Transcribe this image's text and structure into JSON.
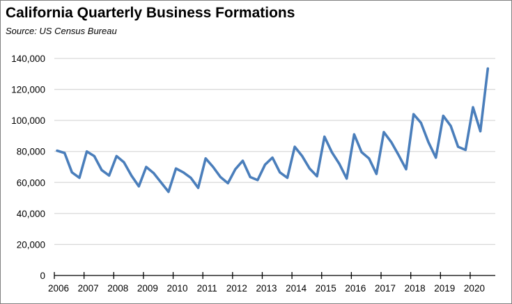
{
  "chart_data": {
    "type": "line",
    "title": "California Quarterly Business Formations",
    "subtitle": "Source:  US Census Bureau",
    "xlabel": "",
    "ylabel": "",
    "ylim": [
      0,
      140000
    ],
    "yticks": [
      "0",
      "20,000",
      "40,000",
      "60,000",
      "80,000",
      "100,000",
      "120,000",
      "140,000"
    ],
    "ytick_values": [
      0,
      20000,
      40000,
      60000,
      80000,
      100000,
      120000,
      140000
    ],
    "xticks": [
      "2006",
      "2007",
      "2008",
      "2009",
      "2010",
      "2011",
      "2012",
      "2013",
      "2014",
      "2015",
      "2016",
      "2017",
      "2018",
      "2019",
      "2020"
    ],
    "grid": true,
    "series": [
      {
        "name": "Business Formations",
        "color": "#4a7ebb",
        "x_note": "quarterly from 2006 Q1 to 2020 Q3",
        "values": [
          80500,
          79000,
          66500,
          63000,
          80000,
          77000,
          68000,
          64500,
          77000,
          73000,
          64500,
          57500,
          70000,
          66000,
          60000,
          54000,
          69000,
          66500,
          63000,
          56500,
          75500,
          70000,
          63500,
          59500,
          68500,
          74000,
          63500,
          61500,
          71500,
          76000,
          66500,
          63000,
          83000,
          77000,
          69000,
          64000,
          89500,
          79500,
          72000,
          62500,
          91000,
          79500,
          75500,
          65500,
          92500,
          86000,
          77500,
          68500,
          104000,
          98500,
          86000,
          76000,
          103000,
          96500,
          83000,
          81000,
          108500,
          93000,
          133500
        ]
      }
    ]
  }
}
